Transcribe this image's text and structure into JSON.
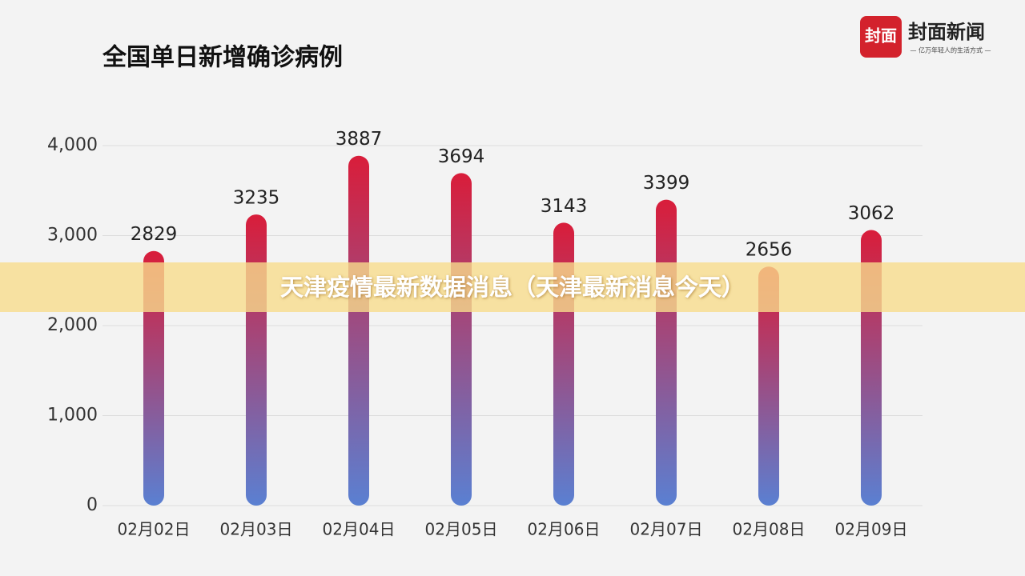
{
  "chart_data": {
    "type": "bar",
    "title": "全国单日新增确诊病例",
    "categories": [
      "02月02日",
      "02月03日",
      "02月04日",
      "02月05日",
      "02月06日",
      "02月07日",
      "02月08日",
      "02月09日"
    ],
    "values": [
      2829,
      3235,
      3887,
      3694,
      3143,
      3399,
      2656,
      3062
    ],
    "gradient": [
      "#d91d3a",
      "#5a80d2"
    ],
    "ylim": [
      0,
      4000
    ],
    "yticks": [
      0,
      {
        "value": 1000,
        "label": "1,000"
      },
      {
        "value": 2000,
        "label": "2,000"
      },
      {
        "value": 3000,
        "label": "3,000"
      },
      {
        "value": 4000,
        "label": "4,000"
      }
    ],
    "grid": true
  },
  "banner": "天津疫情最新数据消息（天津最新消息今天）",
  "logo": {
    "mark": "封面",
    "name": "封面新闻",
    "tagline": "— 亿万年轻人的生活方式 —"
  }
}
